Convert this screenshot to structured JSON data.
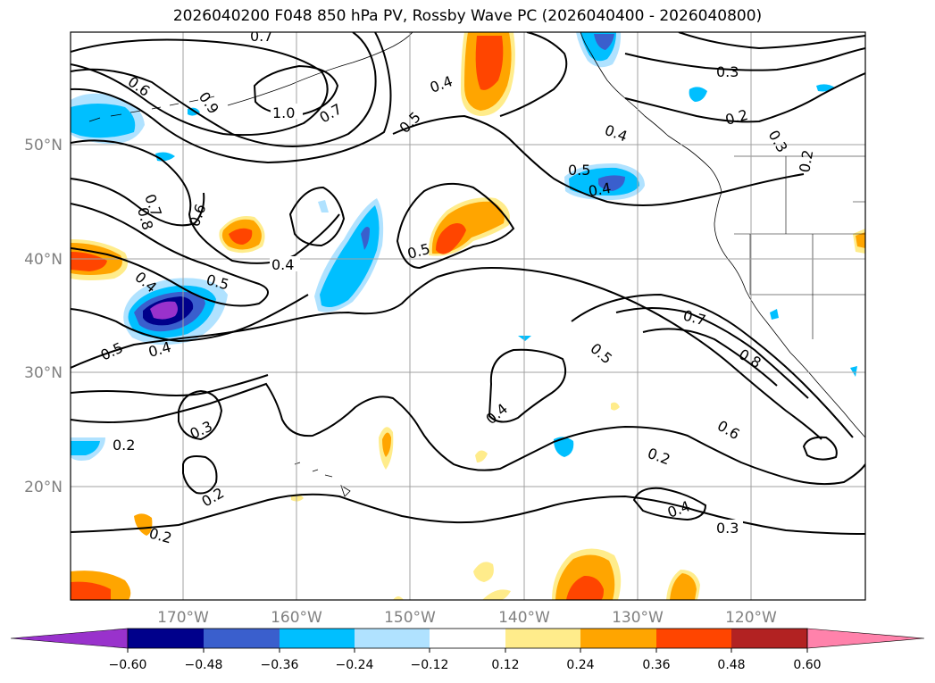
{
  "title": "2026040200 F048 850 hPa PV, Rossby Wave PC (2026040400 - 2026040800)",
  "map": {
    "lon_ticks": [
      "170°W",
      "160°W",
      "150°W",
      "140°W",
      "130°W",
      "120°W"
    ],
    "lat_ticks": [
      "50°N",
      "40°N",
      "30°N",
      "20°N"
    ],
    "contour_labels": [
      "0.7",
      "0.6",
      "0.9",
      "1.0",
      "0.7",
      "0.4",
      "0.5",
      "0.4",
      "0.3",
      "0.2",
      "0.3",
      "0.7",
      "0.8",
      "0.6",
      "0.4",
      "0.5",
      "0.5",
      "0.4",
      "0.5",
      "0.4",
      "0.5",
      "0.4",
      "0.7",
      "0.8",
      "0.5",
      "0.4",
      "0.6",
      "0.3",
      "0.2",
      "0.2",
      "0.2",
      "0.2",
      "0.4",
      "0.3",
      "0.2"
    ]
  },
  "colorbar": {
    "tick_labels": [
      "−0.60",
      "−0.48",
      "−0.36",
      "−0.24",
      "−0.12",
      "0.12",
      "0.24",
      "0.36",
      "0.48",
      "0.60"
    ],
    "colors": [
      "#9932cc",
      "#00008b",
      "#3a5fcd",
      "#00bfff",
      "#b0e2ff",
      "#ffffff",
      "#ffec8b",
      "#ffa500",
      "#ff4500",
      "#b22222",
      "#ff82ab"
    ]
  }
}
